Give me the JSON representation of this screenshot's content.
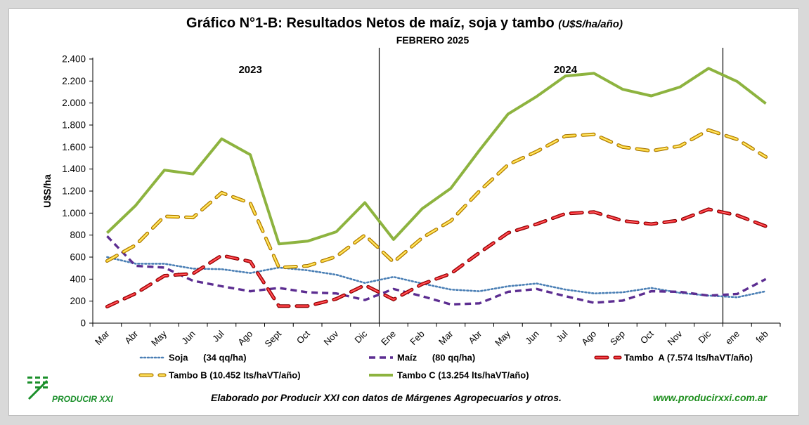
{
  "header": {
    "title": "Gráfico N°1-B: Resultados Netos de maíz, soja y tambo",
    "title_unit": "(U$S/ha/año)",
    "subtitle": "FEBRERO 2025"
  },
  "footer": {
    "credit": "Elaborado por Producir XXI con datos de Márgenes Agropecuarios y otros.",
    "url": "www.producirxxi.com.ar",
    "logo_text": "PRODUCIR XXI"
  },
  "chart_data": {
    "type": "line",
    "ylabel": "U$S/ha",
    "ylim": [
      0,
      2400
    ],
    "yticks": [
      0,
      200,
      400,
      600,
      800,
      1000,
      1200,
      1400,
      1600,
      1800,
      2000,
      2200,
      2400
    ],
    "ytick_labels": [
      "0",
      "200",
      "400",
      "600",
      "800",
      "1.000",
      "1.200",
      "1.400",
      "1.600",
      "1.800",
      "2.000",
      "2.200",
      "2.400"
    ],
    "categories": [
      "Mar",
      "Abr",
      "May",
      "Jun",
      "Jul",
      "Ago",
      "Sept",
      "Oct",
      "Nov",
      "Dic",
      "Ene",
      "Feb",
      "Mar",
      "Abr",
      "May",
      "Jun",
      "Jul",
      "Ago",
      "Sep",
      "Oct",
      "Nov",
      "Dic",
      "ene",
      "feb"
    ],
    "year_labels": [
      {
        "label": "2023",
        "category_index": 5
      },
      {
        "label": "2024",
        "category_index": 16
      }
    ],
    "year_separators_before_index": [
      10,
      22
    ],
    "grid": false,
    "legend_position": "bottom",
    "series": [
      {
        "name": "Soja      (34 qq/ha)",
        "style": "dotted",
        "color": "#4a7fb5",
        "values": [
          600,
          540,
          540,
          495,
          490,
          455,
          505,
          480,
          440,
          365,
          420,
          360,
          305,
          290,
          335,
          360,
          305,
          270,
          280,
          320,
          275,
          250,
          235,
          290
        ]
      },
      {
        "name": "Maíz      (80 qq/ha)",
        "style": "dashed",
        "color": "#5c2d91",
        "values": [
          790,
          520,
          505,
          385,
          335,
          290,
          320,
          280,
          270,
          210,
          310,
          245,
          170,
          180,
          285,
          310,
          245,
          185,
          205,
          290,
          285,
          250,
          265,
          400
        ]
      },
      {
        "name": "Tambo  A (7.574 lts/haVT/año)",
        "style": "dashed-outline",
        "color": "#e8141c",
        "values": [
          150,
          270,
          430,
          450,
          615,
          560,
          155,
          155,
          220,
          345,
          215,
          355,
          450,
          640,
          820,
          900,
          995,
          1010,
          930,
          900,
          935,
          1035,
          980,
          880
        ]
      },
      {
        "name": "Tambo B (10.452 lts/haVT/año)",
        "style": "dashed-outline",
        "color": "#f5c518",
        "values": [
          565,
          710,
          970,
          960,
          1185,
          1090,
          505,
          520,
          605,
          800,
          555,
          775,
          930,
          1200,
          1440,
          1560,
          1700,
          1715,
          1600,
          1565,
          1610,
          1755,
          1670,
          1510
        ]
      },
      {
        "name": "Tambo C (13.254 lts/haVT/año)",
        "style": "solid",
        "color": "#8db33f",
        "values": [
          820,
          1070,
          1390,
          1355,
          1675,
          1530,
          720,
          745,
          830,
          1095,
          760,
          1040,
          1225,
          1570,
          1900,
          2060,
          2245,
          2270,
          2125,
          2065,
          2145,
          2315,
          2195,
          1995
        ]
      }
    ]
  }
}
